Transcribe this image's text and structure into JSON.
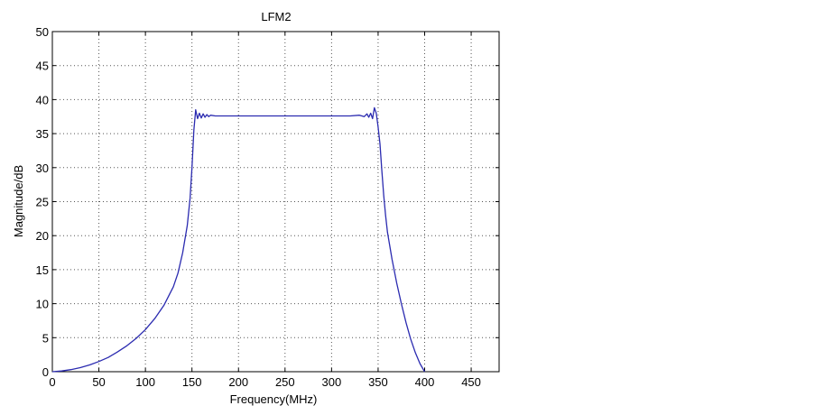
{
  "chart_data": {
    "type": "line",
    "title": "LFM2",
    "xlabel": "Frequency(MHz)",
    "ylabel": "Magnitude/dB",
    "xlim": [
      0,
      480
    ],
    "ylim": [
      0,
      50
    ],
    "xticks": [
      0,
      50,
      100,
      150,
      200,
      250,
      300,
      350,
      400,
      450
    ],
    "yticks": [
      0,
      5,
      10,
      15,
      20,
      25,
      30,
      35,
      40,
      45,
      50
    ],
    "grid": true,
    "grid_style": "dotted",
    "line_color": "#2b2bb0",
    "series": [
      {
        "x": [
          0,
          10,
          20,
          30,
          40,
          50,
          60,
          70,
          80,
          90,
          100,
          110,
          120,
          130,
          135,
          140,
          145,
          148,
          150,
          152,
          154,
          156,
          158,
          160,
          162,
          164,
          166,
          168,
          170,
          175,
          180,
          200,
          250,
          300,
          320,
          330,
          335,
          338,
          340,
          342,
          344,
          346,
          348,
          350,
          352,
          354,
          356,
          358,
          360,
          365,
          370,
          375,
          380,
          385,
          390,
          395,
          400
        ],
        "y": [
          0,
          0.1,
          0.3,
          0.6,
          1.0,
          1.5,
          2.1,
          2.9,
          3.8,
          4.9,
          6.2,
          7.8,
          9.8,
          12.5,
          14.5,
          17.5,
          21.5,
          25.5,
          30.0,
          35.5,
          38.5,
          37.2,
          38.0,
          37.3,
          37.9,
          37.4,
          37.8,
          37.5,
          37.7,
          37.6,
          37.6,
          37.6,
          37.6,
          37.6,
          37.6,
          37.7,
          37.5,
          37.9,
          37.4,
          38.0,
          37.2,
          38.8,
          38.0,
          36.0,
          33.5,
          29.5,
          26.0,
          23.0,
          20.5,
          16.5,
          13.0,
          10.0,
          7.2,
          4.8,
          2.8,
          1.2,
          0
        ]
      }
    ]
  }
}
